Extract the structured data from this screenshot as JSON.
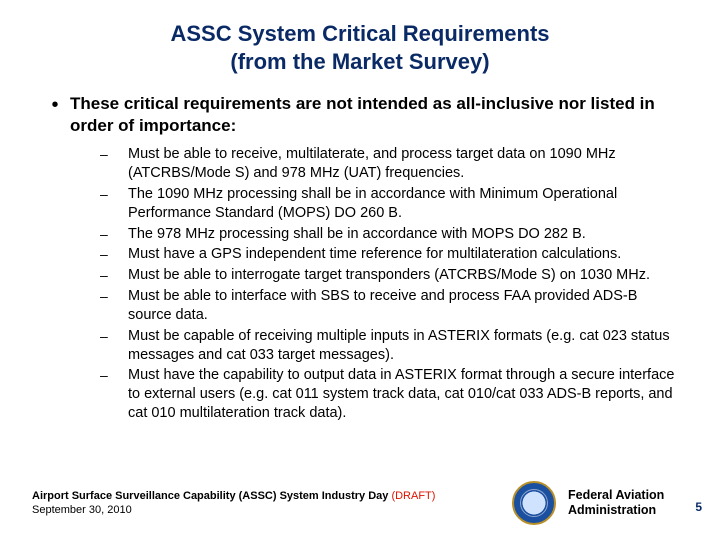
{
  "colors": {
    "title": "#0a2a66",
    "draft": "#d10",
    "pagenum": "#0a2a66",
    "background": "#ffffff",
    "text": "#000000"
  },
  "title_line1": "ASSC System Critical Requirements",
  "title_line2": "(from the Market Survey)",
  "lead": "These critical requirements are not intended as all-inclusive nor listed in order of importance:",
  "bullets": [
    "Must be able to receive, multilaterate, and process target data on 1090 MHz (ATCRBS/Mode S) and 978 MHz (UAT) frequencies.",
    " The 1090 MHz processing shall be in accordance with Minimum Operational Performance Standard (MOPS) DO 260 B.",
    "The 978 MHz processing shall be in accordance with MOPS DO 282 B.",
    "Must have a GPS independent time reference for multilateration calculations.",
    "Must be able to interrogate target transponders (ATCRBS/Mode S) on 1030 MHz.",
    "Must be able to interface with SBS to receive and process FAA provided ADS-B source data.",
    "Must be capable of receiving multiple inputs in ASTERIX formats (e.g. cat 023 status messages and cat 033 target messages).",
    "Must have the capability to output data in ASTERIX format through a secure interface to external users (e.g. cat 011 system track data, cat 010/cat 033 ADS-B reports, and cat 010 multilateration track data)."
  ],
  "footer": {
    "event": "Airport Surface Surveillance Capability (ASSC) System Industry Day",
    "draft": " (DRAFT)",
    "date": "September 30, 2010",
    "org_line1": "Federal Aviation",
    "org_line2": "Administration",
    "page": "5"
  }
}
